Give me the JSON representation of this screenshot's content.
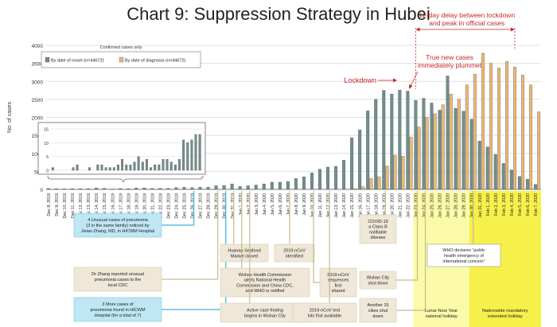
{
  "chart_data": {
    "type": "bar",
    "title": "Chart 9: Suppression Strategy in Hubei",
    "ylabel": "No. of cases",
    "ylim": [
      0,
      4000
    ],
    "yticks": [
      0,
      500,
      1000,
      1500,
      2000,
      2500,
      3000,
      3500,
      4000
    ],
    "legend": {
      "title": "Confirmed cases only",
      "placement": "top-left"
    },
    "series": [
      {
        "name": "By date of onset (n=44672)",
        "color": "#6f8f8c",
        "values": [
          25,
          20,
          15,
          20,
          20,
          20,
          40,
          30,
          10,
          25,
          20,
          40,
          40,
          25,
          30,
          30,
          50,
          60,
          50,
          60,
          60,
          100,
          110,
          150,
          80,
          100,
          120,
          150,
          200,
          200,
          220,
          300,
          350,
          460,
          560,
          620,
          640,
          810,
          1430,
          1650,
          2180,
          2500,
          2750,
          2650,
          2760,
          2730,
          2470,
          2530,
          2400,
          2200,
          3150,
          2250,
          2170,
          1950,
          1340,
          1180,
          970,
          720,
          540,
          360,
          280,
          140
        ]
      },
      {
        "name": "By date of diagnosis (n=44672)",
        "color": "#e9b977",
        "values": [
          0,
          0,
          0,
          0,
          0,
          0,
          0,
          0,
          0,
          0,
          0,
          0,
          0,
          0,
          0,
          0,
          0,
          0,
          0,
          0,
          0,
          0,
          0,
          0,
          0,
          0,
          0,
          0,
          0,
          0,
          0,
          0,
          0,
          0,
          0,
          0,
          0,
          0,
          20,
          70,
          300,
          350,
          650,
          950,
          920,
          1450,
          1730,
          2000,
          2100,
          2350,
          2650,
          2500,
          2900,
          3200,
          3780,
          3500,
          3370,
          3550,
          3400,
          3180,
          2900,
          2150
        ]
      }
    ],
    "categories": [
      "Dec 8, 2019",
      "Dec 9, 2019",
      "Dec 10, 2019",
      "Dec 11, 2019",
      "Dec 12, 2019",
      "Dec 13, 2019",
      "Dec 14, 2019",
      "Dec 15, 2019",
      "Dec 16, 2019",
      "Dec 17, 2019",
      "Dec 18, 2019",
      "Dec 19, 2019",
      "Dec 20, 2019",
      "Dec 21, 2019",
      "Dec 22, 2019",
      "Dec 23, 2019",
      "Dec 24, 2019",
      "Dec 25, 2019",
      "Dec 26, 2019",
      "Dec 27, 2019",
      "Dec 28, 2019",
      "Dec 29, 2019",
      "Dec 30, 2019",
      "Dec 31, 2019",
      "Jan 1, 2020",
      "Jan 2, 2020",
      "Jan 3, 2020",
      "Jan 4, 2020",
      "Jan 5, 2020",
      "Jan 6, 2020",
      "Jan 7, 2020",
      "Jan 8, 2020",
      "Jan 9, 2020",
      "Jan 10, 2020",
      "Jan 11, 2020",
      "Jan 12, 2020",
      "Jan 13, 2020",
      "Jan 14, 2020",
      "Jan 15, 2020",
      "Jan 16, 2020",
      "Jan 17, 2020",
      "Jan 18, 2020",
      "Jan 19, 2020",
      "Jan 20, 2020",
      "Jan 21, 2020",
      "Jan 22, 2020",
      "Jan 23, 2020",
      "Jan 24, 2020",
      "Jan 25, 2020",
      "Jan 26, 2020",
      "Jan 27, 2020",
      "Jan 28, 2020",
      "Jan 29, 2020",
      "Jan 30, 2020",
      "Jan 31, 2020",
      "Feb 1, 2020",
      "Feb 2, 2020",
      "Feb 3, 2020",
      "Feb 4, 2020",
      "Feb 5, 2020",
      "Feb 6, 2020",
      "Feb 7, 2020"
    ],
    "inset": {
      "ylim": [
        0,
        15
      ],
      "yticks": [
        0,
        5,
        10,
        15
      ],
      "values": [
        1,
        0,
        0,
        0,
        0,
        1,
        2,
        0,
        0,
        1,
        0,
        2,
        2,
        1,
        1,
        1,
        2,
        4,
        2,
        2,
        3,
        5,
        3,
        4,
        1,
        2,
        2,
        4,
        4,
        3,
        2,
        4,
        11,
        10,
        11,
        13,
        13
      ]
    },
    "annotations": {
      "delay": "12-day delay between lockdown\nand peak in official cases",
      "plummet": "True new cases\nimmediately plummet",
      "lockdown": "Lockdown"
    },
    "events": [
      {
        "text": "4 Unusual cases of pneumonia\n(3 in the same family) noticed by\nJixian Zhang, MD, in HICWM Hospital",
        "color": "#bfe6f3"
      },
      {
        "text": "Dr Zhang reported unusual\npneumonia cases to the\nlocal CDC",
        "color": "#efe7d7"
      },
      {
        "text": "3 More cases of\npneumonia found in HICWM\nHospital (for a total of 7)",
        "color": "#bfe6f3"
      },
      {
        "text": "Huanan Seafood\nMarket closed",
        "color": "#efe7d7"
      },
      {
        "text": "Wuhan Health Commission\nalerts National Health\nCommission and China CDC,\nand WHO is notified",
        "color": "#efe7d7"
      },
      {
        "text": "Active case finding\nbegins in Wuhan City",
        "color": "#efe7d7"
      },
      {
        "text": "2019-nCoV\nidentified",
        "color": "#efe7d7"
      },
      {
        "text": "2019-nCoV\nsequences\nfirst\nshared",
        "color": "#efe7d7"
      },
      {
        "text": "2019-nCoV test\nkits first available",
        "color": "#efe7d7"
      },
      {
        "text": "COVID-19\na Class B\nnotifiable\ndisease",
        "color": "#efe7d7"
      },
      {
        "text": "Wuhan City\nshut down",
        "color": "#efe7d7"
      },
      {
        "text": "Another 15\ncities shut\ndown",
        "color": "#efe7d7"
      },
      {
        "text": "WHO declares “public\nhealth emergency of\ninternational concern”",
        "color": "#ffffff"
      }
    ],
    "holidays": [
      {
        "text": "Lunar New Year\nnational holiday",
        "color": "#fafaa8"
      },
      {
        "text": "Nationwide mandatory\nextended holiday",
        "color": "#f6f04a"
      }
    ]
  }
}
